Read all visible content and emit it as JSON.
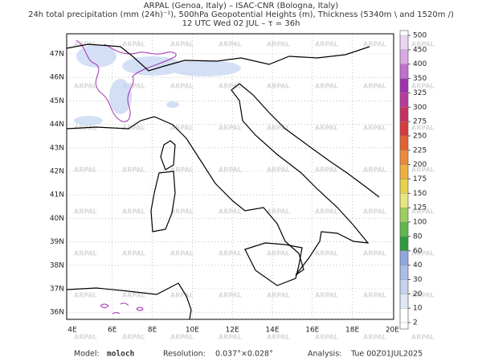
{
  "header": {
    "line1": "ARPAL (Genoa, Italy)  –  ISAC-CNR (Bologna, Italy)",
    "line2": "24h total precipitation (mm (24h)⁻¹), 500hPa Geopotential Heights (m), Thickness (5340m \\ and 1520m /)",
    "line3": "12 UTC Wed 02 JUL  –  τ = 36h"
  },
  "map": {
    "watermark": "ARPAL",
    "lon_ticks": [
      "4E",
      "6E",
      "8E",
      "10E",
      "12E",
      "14E",
      "16E",
      "18E",
      "20E"
    ],
    "lat_ticks": [
      "47N",
      "46N",
      "45N",
      "44N",
      "43N",
      "42N",
      "41N",
      "40N",
      "39N",
      "38N",
      "37N",
      "36N"
    ]
  },
  "colorbar": {
    "ticks": [
      2,
      10,
      20,
      30,
      40,
      60,
      80,
      100,
      125,
      150,
      175,
      200,
      225,
      250,
      275,
      300,
      325,
      350,
      400,
      450,
      500
    ],
    "colors": [
      "#ffffff",
      "#dfe6f5",
      "#c4d2ee",
      "#a9bde6",
      "#8ea8de",
      "#2e9a3e",
      "#5fb84a",
      "#9ccf5a",
      "#e6e67a",
      "#e8d24a",
      "#f0b040",
      "#ec8a38",
      "#e46030",
      "#d83a3a",
      "#c83060",
      "#b83a9a",
      "#a030b0",
      "#c070d0",
      "#d8a8e4",
      "#ecd4f2"
    ]
  },
  "footer": {
    "model_label": "Model:",
    "model": "moloch",
    "resolution_label": "Resolution:",
    "resolution": "0.037°×0.028°",
    "analysis_label": "Analysis:",
    "analysis": "Tue 00Z01JUL2025"
  }
}
